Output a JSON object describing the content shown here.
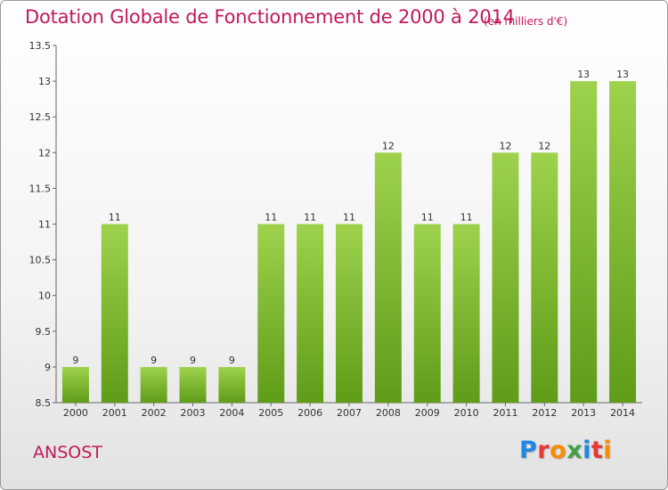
{
  "header": {
    "title": "Dotation Globale de Fonctionnement de 2000 à 2014",
    "subtitle": "(en milliers d'€)"
  },
  "footer": {
    "commune": "ANSOST",
    "logo": {
      "letters": [
        "P",
        "r",
        "o",
        "x",
        "i",
        "t",
        "i"
      ],
      "colors": [
        "#1e88e5",
        "#e53935",
        "#fb8c00",
        "#43a047",
        "#1e88e5",
        "#e53935",
        "#fb8c00"
      ]
    }
  },
  "chart_data": {
    "type": "bar",
    "categories": [
      "2000",
      "2001",
      "2002",
      "2003",
      "2004",
      "2005",
      "2006",
      "2007",
      "2008",
      "2009",
      "2010",
      "2011",
      "2012",
      "2013",
      "2014"
    ],
    "values": [
      9,
      11,
      9,
      9,
      9,
      11,
      11,
      11,
      12,
      11,
      11,
      12,
      12,
      13,
      13
    ],
    "value_labels": [
      "9",
      "11",
      "9",
      "9",
      "9",
      "11",
      "11",
      "11",
      "12",
      "11",
      "11",
      "12",
      "12",
      "13",
      "13"
    ],
    "ylim": [
      8.5,
      13.5
    ],
    "yticks": [
      8.5,
      9,
      9.5,
      10,
      10.5,
      11,
      11.5,
      12,
      12.5,
      13,
      13.5
    ],
    "ytick_labels": [
      "8.5",
      "9",
      "9.5",
      "10",
      "10.5",
      "11",
      "11.5",
      "12",
      "12.5",
      "13",
      "13.5"
    ],
    "bar_color_top": "#9ed24c",
    "bar_color_bottom": "#5f9c18",
    "grid": false
  }
}
